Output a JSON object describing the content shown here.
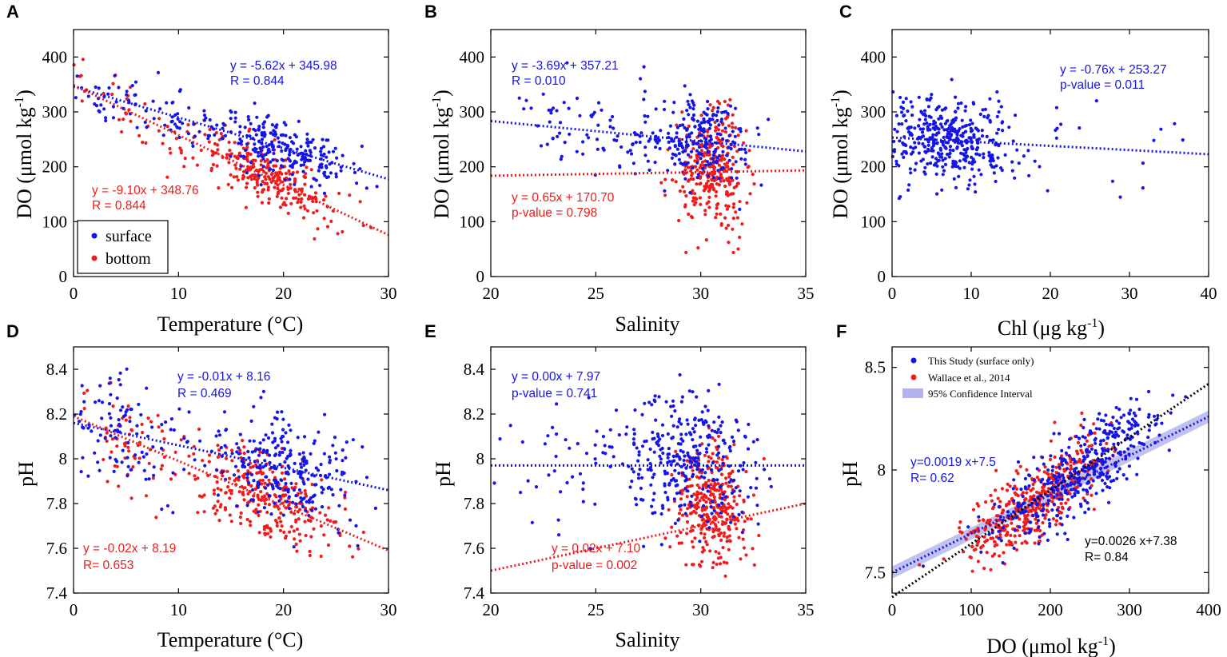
{
  "colors": {
    "surface": "#1515e6",
    "bottom": "#ee1c1c",
    "black": "#000000",
    "band": "#b3b3ee"
  },
  "chart_data": [
    {
      "id": "A",
      "type": "scatter",
      "panel_letter": "A",
      "xlabel": "Temperature (°C)",
      "ylabel_main": "DO (μmol kg",
      "ylabel_sup": "-1",
      "ylabel_close": ")",
      "xlim": [
        0,
        30
      ],
      "ylim": [
        0,
        450
      ],
      "xticks": [
        0,
        10,
        20,
        30
      ],
      "xtick_labels": [
        "0",
        "10",
        "20",
        "30"
      ],
      "yticks": [
        0,
        100,
        200,
        300,
        400
      ],
      "ytick_labels": [
        "0",
        "100",
        "200",
        "300",
        "400"
      ],
      "series": [
        {
          "name": "surface",
          "color_key": "surface",
          "slope": -5.62,
          "intercept": 345.98,
          "resid": 26,
          "clusters": [
            {
              "xm": 7,
              "xs": 5,
              "n": 90
            },
            {
              "xm": 20,
              "xs": 3.2,
              "n": 230
            }
          ],
          "seed": 11,
          "slope_pts": -5.62,
          "int_pts": 345.98
        },
        {
          "name": "bottom",
          "color_key": "bottom",
          "slope": -9.1,
          "intercept": 348.76,
          "resid": 28,
          "clusters": [
            {
              "xm": 6,
              "xs": 4.5,
              "n": 40
            },
            {
              "xm": 18.5,
              "xs": 3.2,
              "n": 260
            }
          ],
          "seed": 12,
          "slope_pts": -9.1,
          "int_pts": 348.76
        }
      ],
      "annotations": [
        {
          "lines": [
            "y = -5.62x + 345.98",
            "R = 0.844"
          ],
          "color_key": "surface",
          "x": 15,
          "y": 392
        },
        {
          "lines": [
            "y = -9.10x + 348.76",
            "R = 0.844"
          ],
          "color_key": "bottom",
          "x": 1.8,
          "y": 155
        }
      ],
      "legend": {
        "items": [
          "surface",
          "bottom"
        ]
      }
    },
    {
      "id": "B",
      "type": "scatter",
      "panel_letter": "B",
      "xlabel": "Salinity",
      "ylabel_main": "DO (μmol kg",
      "ylabel_sup": "-1",
      "ylabel_close": ")",
      "xlim": [
        20,
        35
      ],
      "ylim": [
        0,
        450
      ],
      "xticks": [
        20,
        25,
        30,
        35
      ],
      "xtick_labels": [
        "20",
        "25",
        "30",
        "35"
      ],
      "yticks": [
        0,
        100,
        200,
        300,
        400
      ],
      "ytick_labels": [
        "0",
        "100",
        "200",
        "300",
        "400"
      ],
      "series": [
        {
          "name": "surface",
          "color_key": "surface",
          "slope": -3.69,
          "intercept": 357.21,
          "resid": 38,
          "clusters": [
            {
              "xm": 30,
              "xs": 1.3,
              "n": 230
            },
            {
              "xm": 25.5,
              "xs": 2.4,
              "n": 80
            }
          ],
          "seed": 21,
          "slope_pts": -3.69,
          "int_pts": 357.21
        },
        {
          "name": "bottom",
          "color_key": "bottom",
          "slope": 0.65,
          "intercept": 170.7,
          "resid": 52,
          "clusters": [
            {
              "xm": 30.5,
              "xs": 0.8,
              "n": 300
            }
          ],
          "seed": 22,
          "slope_pts": 0.65,
          "int_pts": 170.7
        }
      ],
      "annotations": [
        {
          "lines": [
            "y = -3.69x + 357.21",
            "R  = 0.010"
          ],
          "color_key": "surface",
          "x": 20.8,
          "y": 386
        },
        {
          "lines": [
            "y = 0.65x + 170.70",
            "p-value = 0.798"
          ],
          "color_key": "bottom",
          "x": 20.8,
          "y": 143
        }
      ]
    },
    {
      "id": "C",
      "type": "scatter",
      "panel_letter": "C",
      "xlabel_main": "Chl (μg kg",
      "xlabel_sup": "-1",
      "xlabel_close": ")",
      "ylabel_main": "DO (μmol kg",
      "ylabel_sup": "-1",
      "ylabel_close": ")",
      "xlim": [
        0,
        40
      ],
      "ylim": [
        0,
        450
      ],
      "xticks": [
        0,
        10,
        20,
        30,
        40
      ],
      "xtick_labels": [
        "0",
        "10",
        "20",
        "30",
        "40"
      ],
      "yticks": [
        0,
        100,
        200,
        300,
        400
      ],
      "ytick_labels": [
        "0",
        "100",
        "200",
        "300",
        "400"
      ],
      "series": [
        {
          "name": "surface",
          "color_key": "surface",
          "slope": -0.76,
          "intercept": 253.27,
          "resid": 38,
          "clusters": [
            {
              "xm": 6.5,
              "xs": 4.2,
              "n": 420
            },
            {
              "xm": 26,
              "xs": 6,
              "n": 22
            }
          ],
          "seed": 31,
          "slope_pts": -0.76,
          "int_pts": 253.27
        }
      ],
      "annotations": [
        {
          "lines": [
            "y = -0.76x + 253.27",
            "p-value = 0.011"
          ],
          "color_key": "surface",
          "x": 21.6,
          "y": 386
        }
      ]
    },
    {
      "id": "D",
      "type": "scatter",
      "panel_letter": "D",
      "xlabel": "Temperature (°C)",
      "ylabel": "pH",
      "xlim": [
        0,
        30
      ],
      "ylim": [
        7.4,
        8.5
      ],
      "xticks": [
        0,
        10,
        20,
        30
      ],
      "xtick_labels": [
        "0",
        "10",
        "20",
        "30"
      ],
      "yticks": [
        7.4,
        7.6,
        7.8,
        8.0,
        8.2,
        8.4
      ],
      "ytick_labels": [
        "7.4",
        "7.6",
        "7.8",
        "8",
        "8.2",
        "8.4"
      ],
      "series": [
        {
          "name": "surface",
          "color_key": "surface",
          "slope": -0.01,
          "intercept": 8.16,
          "resid": 0.12,
          "clusters": [
            {
              "xm": 5,
              "xs": 3.5,
              "n": 110
            },
            {
              "xm": 20,
              "xs": 3.5,
              "n": 260
            }
          ],
          "seed": 41,
          "slope_pts": -0.01,
          "int_pts": 8.16
        },
        {
          "name": "bottom",
          "color_key": "bottom",
          "slope": -0.02,
          "intercept": 8.19,
          "resid": 0.11,
          "clusters": [
            {
              "xm": 5,
              "xs": 2.5,
              "n": 60
            },
            {
              "xm": 18.5,
              "xs": 3.5,
              "n": 280
            }
          ],
          "seed": 42,
          "slope_pts": -0.02,
          "int_pts": 8.19
        }
      ],
      "annotations": [
        {
          "lines": [
            "y = -0.01x + 8.16",
            "R = 0.469"
          ],
          "color_key": "surface",
          "x": 10,
          "y": 8.446
        },
        {
          "lines": [
            "y = -0.02x + 8.19",
            "R= 0.653"
          ],
          "color_key": "bottom",
          "x": 1,
          "y": 7.6
        }
      ]
    },
    {
      "id": "E",
      "type": "scatter",
      "panel_letter": "E",
      "xlabel": "Salinity",
      "ylabel": "pH",
      "xlim": [
        20,
        35
      ],
      "ylim": [
        7.4,
        8.5
      ],
      "xticks": [
        20,
        25,
        30,
        35
      ],
      "xtick_labels": [
        "20",
        "25",
        "30",
        "35"
      ],
      "yticks": [
        7.4,
        7.6,
        7.8,
        8.0,
        8.2,
        8.4
      ],
      "ytick_labels": [
        "7.4",
        "7.6",
        "7.8",
        "8",
        "8.2",
        "8.4"
      ],
      "series": [
        {
          "name": "surface",
          "color_key": "surface",
          "slope": 0.0,
          "intercept": 7.97,
          "resid": 0.15,
          "clusters": [
            {
              "xm": 29.5,
              "xs": 1.6,
              "n": 300
            },
            {
              "xm": 25,
              "xs": 2.2,
              "n": 60
            }
          ],
          "seed": 51,
          "slope_pts": 0.0,
          "int_pts": 7.98
        },
        {
          "name": "bottom",
          "color_key": "bottom",
          "slope": 0.02,
          "intercept": 7.1,
          "resid": 0.13,
          "clusters": [
            {
              "xm": 30.5,
              "xs": 0.8,
              "n": 340
            }
          ],
          "seed": 52,
          "slope_pts": 0.0,
          "int_pts": 7.79
        }
      ],
      "annotations": [
        {
          "lines": [
            "y = 0.00x + 7.97",
            "p-value = 0.741"
          ],
          "color_key": "surface",
          "x": 20.8,
          "y": 8.446
        },
        {
          "lines": [
            "y = 0.02x + 7.10",
            "p-value = 0.002"
          ],
          "color_key": "bottom",
          "x": 27,
          "y": 7.6
        }
      ]
    },
    {
      "id": "F",
      "type": "scatter",
      "panel_letter": "F",
      "xlabel_main": "DO (μmol kg",
      "xlabel_sup": "-1",
      "xlabel_close": ")",
      "ylabel": "pH",
      "xlim": [
        0,
        400
      ],
      "ylim": [
        7.4,
        8.6
      ],
      "xticks": [
        0,
        100,
        200,
        300,
        400
      ],
      "xtick_labels": [
        "0",
        "100",
        "200",
        "300",
        "400"
      ],
      "yticks": [
        7.5,
        8.0,
        8.5
      ],
      "ytick_labels": [
        "7.5",
        "8",
        "8.5"
      ],
      "series": [
        {
          "name": "This Study (surface only)",
          "color_key": "surface",
          "slope": 0.0019,
          "intercept": 7.5,
          "resid": 0.1,
          "clusters": [
            {
              "xm": 240,
              "xs": 50,
              "n": 420
            }
          ],
          "seed": 61,
          "slope_pts": 0.0026,
          "int_pts": 7.38
        },
        {
          "name": "Wallace et al., 2014",
          "color_key": "bottom",
          "slope": 0.0026,
          "intercept": 7.38,
          "resid": 0.09,
          "clusters": [
            {
              "xm": 175,
              "xs": 45,
              "n": 420
            }
          ],
          "seed": 62,
          "slope_pts": 0.0026,
          "int_pts": 7.38
        }
      ],
      "extra_line": {
        "slope": 0.0026,
        "intercept": 7.38,
        "color_key": "black"
      },
      "band": {
        "label": "95% Confidence Interval",
        "half_width": 0.03
      },
      "annotations": [
        {
          "lines": [
            "y=0.0019 x+7.5",
            "R= 0.62"
          ],
          "color_key": "surface",
          "x": 22,
          "y": 8.05
        },
        {
          "lines": [
            "y=0.0026 x+7.38",
            "R= 0.84"
          ],
          "color_key": "black",
          "x": 258,
          "y": 7.67
        }
      ],
      "legend": {
        "items": [
          "This Study (surface only)",
          "Wallace et al., 2014",
          "95% Confidence Interval"
        ]
      }
    }
  ]
}
